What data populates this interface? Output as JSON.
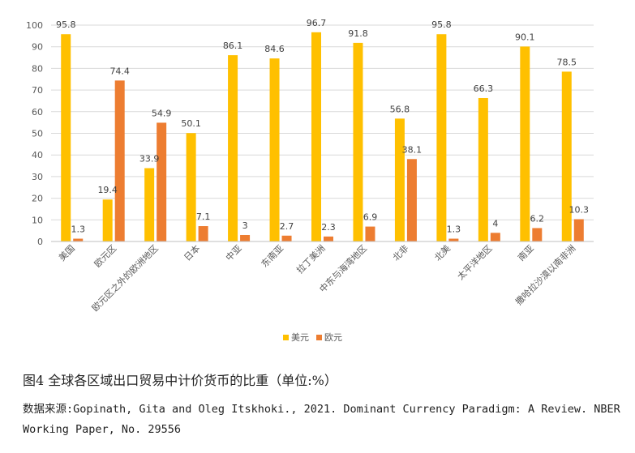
{
  "chart_data": {
    "type": "bar",
    "categories": [
      "美国",
      "欧元区",
      "欧元区之外的欧洲地区",
      "日本",
      "中亚",
      "东南亚",
      "拉丁美洲",
      "中东与海湾地区",
      "北非",
      "北美",
      "太平洋地区",
      "南亚",
      "撒哈拉沙漠以南非洲"
    ],
    "series": [
      {
        "name": "美元",
        "color": "#FFC000",
        "values": [
          95.8,
          19.4,
          33.9,
          50.1,
          86.1,
          84.6,
          96.7,
          91.8,
          56.8,
          95.8,
          66.3,
          90.1,
          78.5
        ]
      },
      {
        "name": "欧元",
        "color": "#ED7D31",
        "values": [
          1.3,
          74.4,
          54.9,
          7.1,
          3,
          2.7,
          2.3,
          6.9,
          38.1,
          1.3,
          4,
          6.2,
          10.3
        ]
      }
    ],
    "ylim": [
      0,
      100
    ],
    "yticks": [
      0,
      10,
      20,
      30,
      40,
      50,
      60,
      70,
      80,
      90,
      100
    ],
    "grid": true,
    "legend": "bottom",
    "title": "",
    "xlabel": "",
    "ylabel": ""
  },
  "caption": "图4 全球各区域出口贸易中计价货币的比重（单位:%）",
  "source": "数据来源:Gopinath, Gita and Oleg Itskhoki., 2021. Dominant Currency Paradigm: A Review. NBER Working Paper, No. 29556"
}
